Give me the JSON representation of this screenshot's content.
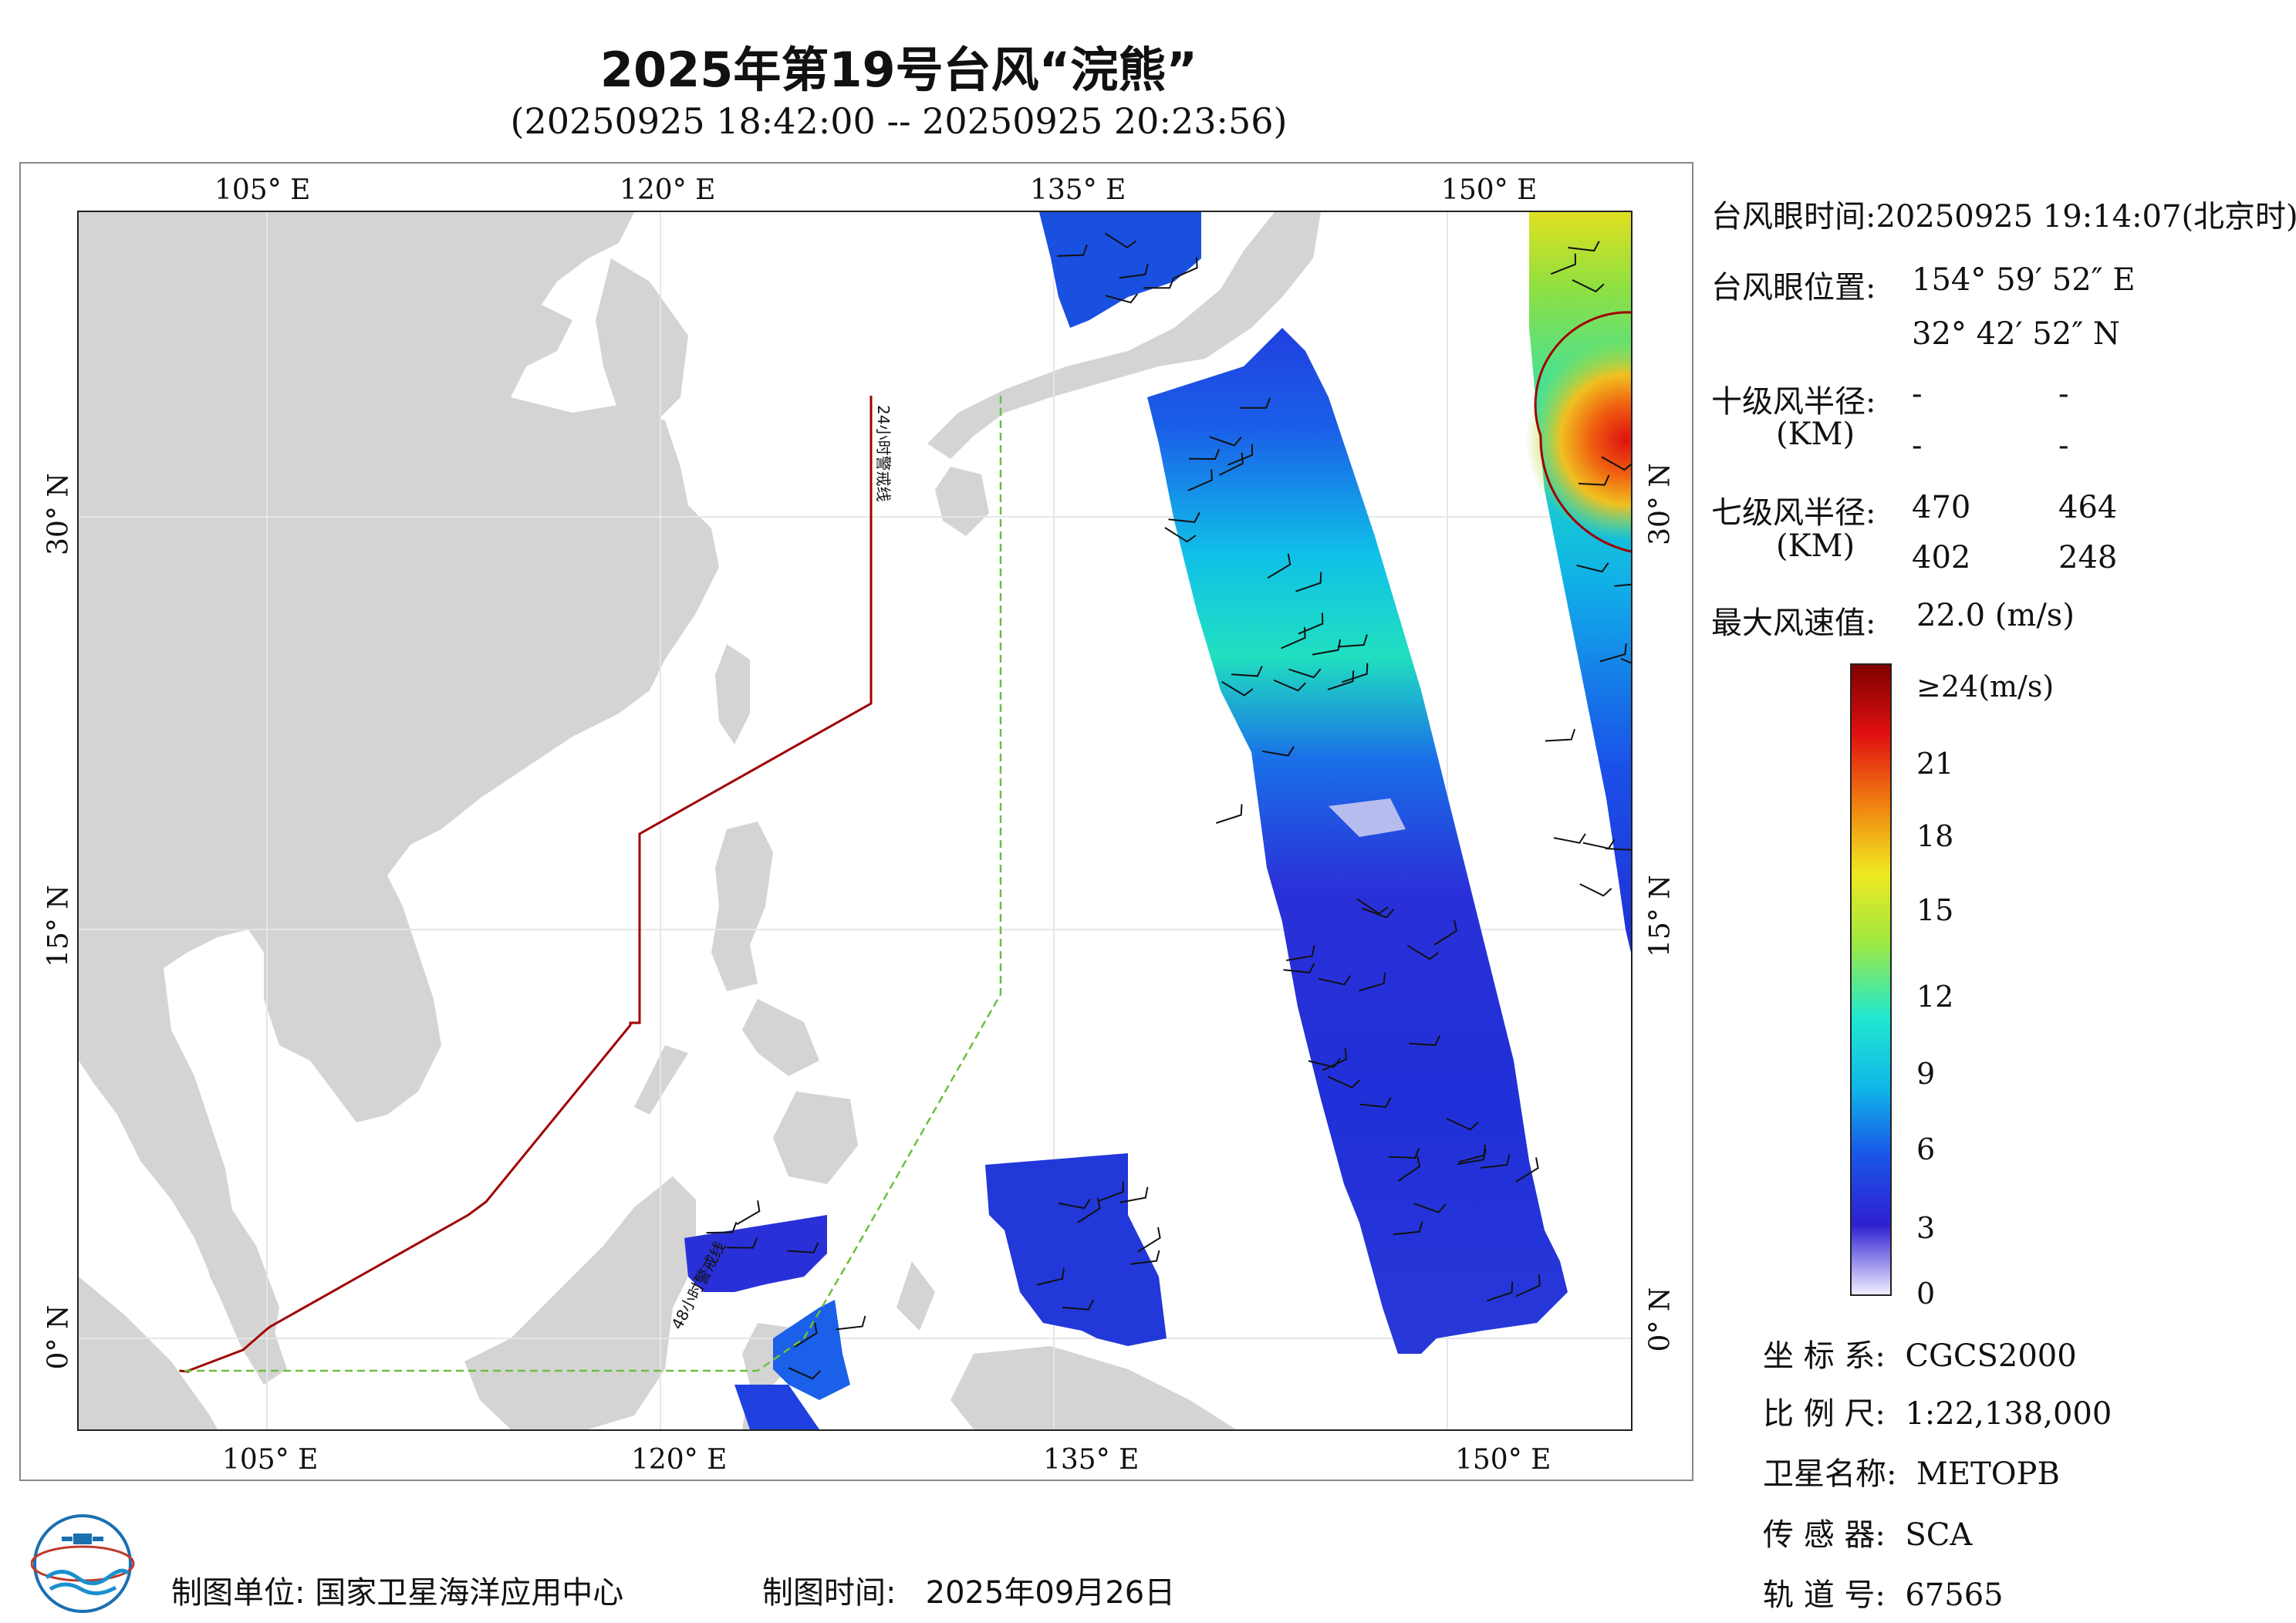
{
  "title": "2025年第19号台风“浣熊”",
  "subtitle": "(20250925 18:42:00 -- 20250925 20:23:56)",
  "axes": {
    "lon_labels": [
      "105° E",
      "120° E",
      "135° E",
      "150° E"
    ],
    "lat_labels": [
      "0° N",
      "15° N",
      "30° N"
    ],
    "lon_values": [
      105,
      120,
      135,
      150
    ],
    "lat_values": [
      0,
      15,
      30
    ]
  },
  "map_labels": {
    "line_24h": "24小时警戒线",
    "line_48h": "48小时警戒线"
  },
  "info": {
    "eye_time_label": "台风眼时间:",
    "eye_time_value": "20250925 19:14:07(北京时)",
    "eye_pos_label": "台风眼位置:",
    "eye_lon": "154° 59′ 52″ E",
    "eye_lat": "32° 42′ 52″ N",
    "r10_label": "十级风半径:",
    "r10_unit": "(KM)",
    "r10_values": [
      "-",
      "-",
      "-",
      "-"
    ],
    "r7_label": "七级风半径:",
    "r7_unit": "(KM)",
    "r7_values": [
      "470",
      "464",
      "402",
      "248"
    ],
    "max_wind_label": "最大风速值:",
    "max_wind_value": "22.0 (m/s)"
  },
  "legend": {
    "ticks": [
      "≥24(m/s)",
      "21",
      "18",
      "15",
      "12",
      "9",
      "6",
      "3",
      "0"
    ],
    "tick_values": [
      24,
      21,
      18,
      15,
      12,
      9,
      6,
      3,
      0
    ],
    "colors": [
      "#f0f0ff",
      "#3020d0",
      "#1a55e8",
      "#10b8e8",
      "#20e8d0",
      "#a0e840",
      "#f0e820",
      "#f08010",
      "#e01010",
      "#800000"
    ]
  },
  "meta": {
    "crs_label": "坐 标 系:",
    "crs_value": "CGCS2000",
    "scale_label": "比 例 尺:",
    "scale_value": "1:22,138,000",
    "sat_label": "卫星名称:",
    "sat_value": "METOPB",
    "sensor_label": "传 感 器:",
    "sensor_value": "SCA",
    "orbit_label": "轨 道 号:",
    "orbit_value": "67565"
  },
  "footer": {
    "org_label": "制图单位:",
    "org_value": "国家卫星海洋应用中心",
    "time_label": "制图时间:",
    "time_value": "2025年09月26日"
  },
  "colors": {
    "land": "#d4d4d4",
    "line_24h": "#a00000",
    "line_48h": "#6ac040",
    "grid": "#e6e6e6"
  }
}
